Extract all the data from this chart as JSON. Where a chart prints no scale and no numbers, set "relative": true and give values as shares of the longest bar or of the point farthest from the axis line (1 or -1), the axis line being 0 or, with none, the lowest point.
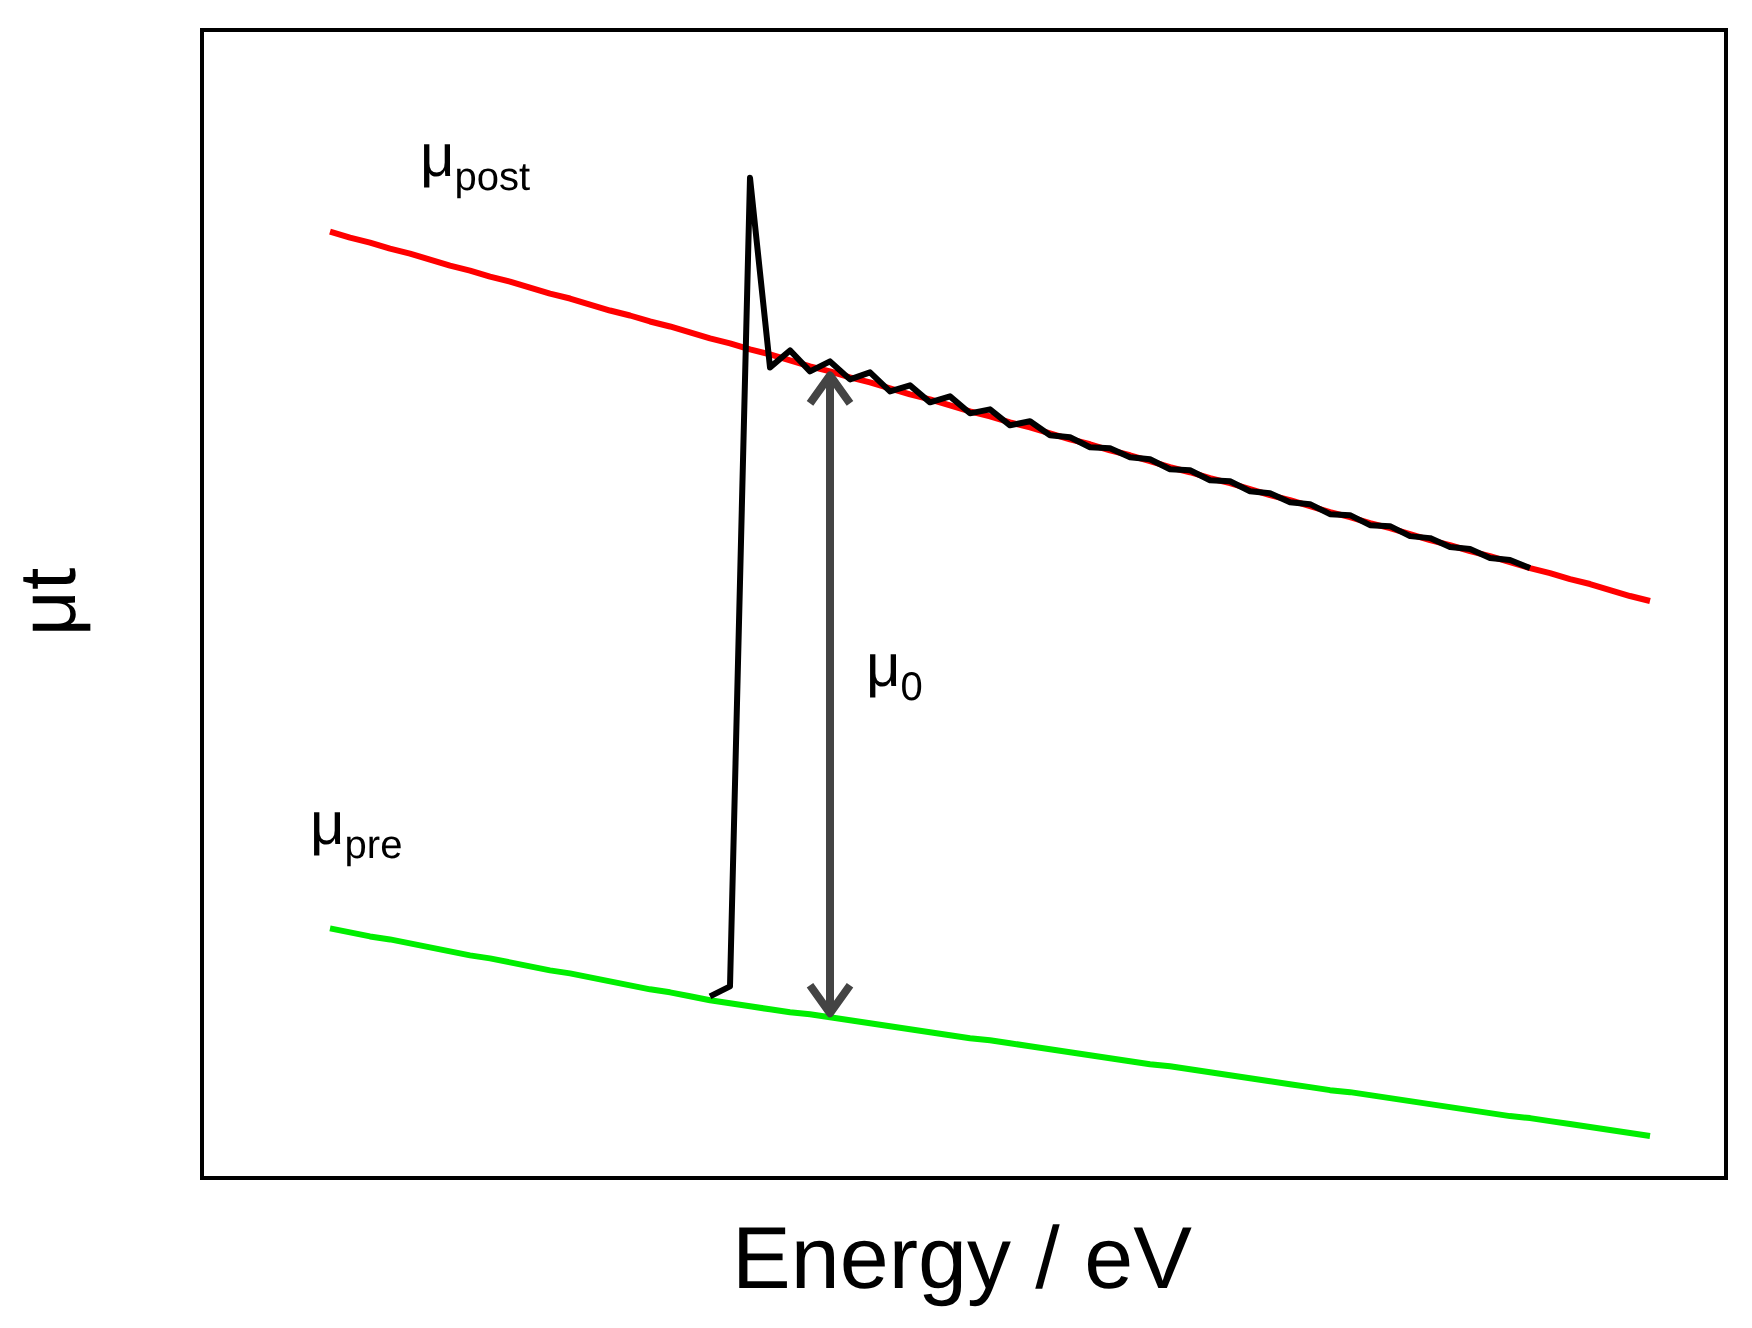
{
  "chart_data": {
    "type": "line",
    "relative": true,
    "xlabel": "Energy / eV",
    "ylabel": "μt",
    "marker": "none",
    "line_style": "solid",
    "categories": [
      null,
      null,
      null,
      null,
      null,
      null,
      null,
      null,
      null,
      null,
      null,
      null,
      null,
      null,
      null,
      null,
      null,
      null,
      null,
      null,
      null,
      null,
      null,
      null,
      null,
      null,
      null,
      null,
      null,
      null,
      null,
      null,
      null,
      null,
      null,
      null,
      null,
      null,
      null,
      null,
      null,
      null,
      null,
      null,
      null,
      null,
      null,
      null,
      null,
      null,
      null,
      null,
      null,
      null,
      null,
      null,
      null,
      null,
      null,
      null,
      null,
      null,
      null,
      null,
      null,
      null,
      null
    ],
    "series": [
      {
        "color": "#ff0000",
        "values": [
          0.946,
          0.94,
          0.935,
          0.929,
          0.924,
          0.918,
          0.912,
          0.907,
          0.901,
          0.896,
          0.89,
          0.884,
          0.879,
          0.873,
          0.867,
          0.862,
          0.856,
          0.851,
          0.845,
          0.839,
          0.834,
          0.828,
          0.823,
          0.817,
          0.811,
          0.806,
          0.8,
          0.795,
          0.789,
          0.783,
          0.778,
          0.772,
          0.766,
          0.761,
          0.755,
          0.75,
          0.744,
          0.738,
          0.733,
          0.727,
          0.722,
          0.716,
          0.71,
          0.705,
          0.699,
          0.694,
          0.688,
          0.682,
          0.677,
          0.671,
          0.665,
          0.66,
          0.654,
          0.649,
          0.643,
          0.637,
          0.632,
          0.626,
          0.621,
          0.615,
          0.609,
          0.604,
          0.598,
          0.593,
          0.587,
          0.581,
          0.576
        ]
      },
      {
        "color": "#00ee00",
        "values": [
          0.248,
          0.244,
          0.24,
          0.237,
          0.233,
          0.229,
          0.225,
          0.221,
          0.218,
          0.214,
          0.21,
          0.206,
          0.203,
          0.199,
          0.195,
          0.191,
          0.187,
          0.184,
          0.18,
          0.176,
          0.173,
          0.17,
          0.167,
          0.164,
          0.162,
          0.159,
          0.156,
          0.153,
          0.15,
          0.147,
          0.144,
          0.141,
          0.138,
          0.136,
          0.133,
          0.13,
          0.127,
          0.124,
          0.121,
          0.118,
          0.115,
          0.112,
          0.11,
          0.107,
          0.104,
          0.101,
          0.098,
          0.095,
          0.092,
          0.089,
          0.086,
          0.084,
          0.081,
          0.078,
          0.075,
          0.072,
          0.069,
          0.066,
          0.063,
          0.06,
          0.058,
          0.055,
          0.052,
          0.049,
          0.046,
          0.043,
          0.04
        ]
      },
      {
        "color": "#000000",
        "values": [
          null,
          null,
          null,
          null,
          null,
          null,
          null,
          null,
          null,
          null,
          null,
          null,
          null,
          null,
          null,
          null,
          null,
          null,
          null,
          0.18,
          0.19,
          1.0,
          0.81,
          0.827,
          0.806,
          0.816,
          0.798,
          0.805,
          0.786,
          0.792,
          0.775,
          0.781,
          0.764,
          0.768,
          0.752,
          0.756,
          0.742,
          0.74,
          0.73,
          0.729,
          0.72,
          0.718,
          0.708,
          0.707,
          0.697,
          0.696,
          0.686,
          0.684,
          0.675,
          0.673,
          0.663,
          0.662,
          0.652,
          0.651,
          0.641,
          0.639,
          0.63,
          0.628,
          0.619,
          0.617,
          0.609,
          null,
          null,
          null,
          null,
          null,
          null
        ]
      }
    ],
    "annotations": [
      "μ$_{post}$",
      "μ$_{pre}$",
      "μ$_{0}$"
    ]
  }
}
